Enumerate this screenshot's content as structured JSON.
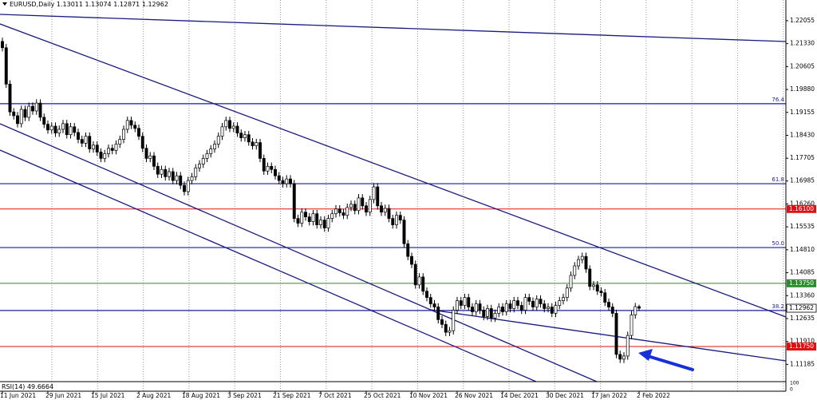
{
  "chart_data": {
    "type": "candlestick",
    "symbol": "EURUSD,Daily",
    "categories": [
      "11 Jun 2021",
      null,
      null,
      null,
      null,
      null,
      null,
      null,
      null,
      null,
      null,
      null,
      "29 Jun 2021",
      null,
      null,
      null,
      null,
      null,
      null,
      null,
      null,
      null,
      null,
      null,
      "15 Jul 2021",
      null,
      null,
      null,
      null,
      null,
      null,
      null,
      null,
      null,
      null,
      null,
      "2 Aug 2021",
      null,
      null,
      null,
      null,
      null,
      null,
      null,
      null,
      null,
      null,
      null,
      "18 Aug 2021",
      null,
      null,
      null,
      null,
      null,
      null,
      null,
      null,
      null,
      null,
      null,
      "3 Sep 2021",
      null,
      null,
      null,
      null,
      null,
      null,
      null,
      null,
      null,
      null,
      null,
      "21 Sep 2021",
      null,
      null,
      null,
      null,
      null,
      null,
      null,
      null,
      null,
      null,
      null,
      "7 Oct 2021",
      null,
      null,
      null,
      null,
      null,
      null,
      null,
      null,
      null,
      null,
      null,
      "25 Oct 2021",
      null,
      null,
      null,
      null,
      null,
      null,
      null,
      null,
      null,
      null,
      null,
      "10 Nov 2021",
      null,
      null,
      null,
      null,
      null,
      null,
      null,
      null,
      null,
      null,
      null,
      "26 Nov 2021",
      null,
      null,
      null,
      null,
      null,
      null,
      null,
      null,
      null,
      null,
      null,
      "14 Dec 2021",
      null,
      null,
      null,
      null,
      null,
      null,
      null,
      null,
      null,
      null,
      null,
      "30 Dec 2021",
      null,
      null,
      null,
      null,
      null,
      null,
      null,
      null,
      null,
      null,
      null,
      "17 Jan 2022",
      null,
      null,
      null,
      null,
      null,
      null,
      null,
      null,
      null,
      null,
      null,
      "2 Feb 2022"
    ],
    "open": [
      1.214,
      1.212,
      1.2005,
      1.1917,
      1.1905,
      1.188,
      1.1925,
      1.19,
      1.1935,
      1.192,
      1.1945,
      1.19,
      1.1878,
      1.186,
      1.1872,
      1.185,
      1.1862,
      1.188,
      1.1845,
      1.187,
      1.1852,
      1.183,
      1.1818,
      1.184,
      1.18,
      1.1812,
      1.179,
      1.177,
      1.1785,
      1.1802,
      1.1795,
      1.1815,
      1.183,
      1.1862,
      1.189,
      1.1875,
      1.1865,
      1.184,
      1.1802,
      1.177,
      1.1778,
      1.1745,
      1.172,
      1.1735,
      1.1712,
      1.1728,
      1.17,
      1.1715,
      1.1685,
      1.1665,
      1.17,
      1.1712,
      1.174,
      1.1752,
      1.177,
      1.1785,
      1.18,
      1.1815,
      1.184,
      1.187,
      1.189,
      1.1865,
      1.1872,
      1.185,
      1.1835,
      1.1845,
      1.1822,
      1.181,
      1.182,
      1.177,
      1.173,
      1.1745,
      1.1735,
      1.1715,
      1.17,
      1.169,
      1.1705,
      1.169,
      1.158,
      1.1565,
      1.16,
      1.1585,
      1.157,
      1.1595,
      1.156,
      1.1575,
      1.155,
      1.158,
      1.1595,
      1.161,
      1.1598,
      1.159,
      1.1615,
      1.1625,
      1.1605,
      1.1645,
      1.162,
      1.16,
      1.164,
      1.168,
      1.162,
      1.16,
      1.1612,
      1.158,
      1.156,
      1.159,
      1.1575,
      1.15,
      1.146,
      1.1435,
      1.137,
      1.1395,
      1.135,
      1.133,
      1.131,
      1.13,
      1.126,
      1.1245,
      1.122,
      1.1225,
      1.129,
      1.132,
      1.1305,
      1.133,
      1.13,
      1.1285,
      1.131,
      1.129,
      1.127,
      1.1295,
      1.1265,
      1.128,
      1.13,
      1.1285,
      1.131,
      1.1295,
      1.132,
      1.1305,
      1.129,
      1.133,
      1.1318,
      1.13,
      1.1325,
      1.131,
      1.1295,
      1.13,
      1.128,
      1.1305,
      1.132,
      1.133,
      1.136,
      1.14,
      1.143,
      1.145,
      1.146,
      1.142,
      1.1365,
      1.137,
      1.135,
      1.1345,
      1.1315,
      1.13,
      1.128,
      1.115,
      1.1135,
      1.1145,
      1.121,
      1.1275,
      1.13011
    ],
    "high": [
      1.2152,
      1.2132,
      1.2017,
      1.1929,
      1.1917,
      1.1937,
      1.1937,
      1.1947,
      1.1947,
      1.1957,
      1.1957,
      1.1912,
      1.189,
      1.1884,
      1.1884,
      1.1874,
      1.1892,
      1.1892,
      1.1882,
      1.1882,
      1.1864,
      1.1842,
      1.1852,
      1.1852,
      1.1824,
      1.1824,
      1.1802,
      1.1797,
      1.1814,
      1.1814,
      1.1827,
      1.1842,
      1.1874,
      1.1902,
      1.1902,
      1.1887,
      1.1877,
      1.1852,
      1.1814,
      1.179,
      1.179,
      1.1757,
      1.1747,
      1.1747,
      1.174,
      1.174,
      1.1727,
      1.1727,
      1.1697,
      1.1712,
      1.1724,
      1.1752,
      1.1764,
      1.1782,
      1.1797,
      1.1812,
      1.1827,
      1.1852,
      1.1882,
      1.1902,
      1.1902,
      1.1884,
      1.1884,
      1.1862,
      1.1857,
      1.1857,
      1.1834,
      1.1832,
      1.1832,
      1.1782,
      1.1757,
      1.1757,
      1.1747,
      1.1727,
      1.1712,
      1.1717,
      1.1717,
      1.1702,
      1.1592,
      1.1612,
      1.1612,
      1.1597,
      1.1607,
      1.1607,
      1.1587,
      1.1587,
      1.1592,
      1.1607,
      1.1622,
      1.1622,
      1.161,
      1.1627,
      1.1637,
      1.1637,
      1.1657,
      1.1657,
      1.1632,
      1.1652,
      1.1692,
      1.1692,
      1.1632,
      1.1624,
      1.1624,
      1.1592,
      1.1602,
      1.1602,
      1.1587,
      1.1512,
      1.1472,
      1.1447,
      1.1407,
      1.1407,
      1.1362,
      1.1342,
      1.1322,
      1.1312,
      1.1272,
      1.1257,
      1.1237,
      1.1302,
      1.1332,
      1.1332,
      1.1342,
      1.1342,
      1.1312,
      1.1322,
      1.1322,
      1.1302,
      1.1307,
      1.1307,
      1.1292,
      1.1312,
      1.1312,
      1.1322,
      1.1322,
      1.1332,
      1.1332,
      1.1317,
      1.1342,
      1.1342,
      1.133,
      1.1337,
      1.1337,
      1.1322,
      1.1312,
      1.1312,
      1.1317,
      1.1332,
      1.1342,
      1.1372,
      1.1412,
      1.1442,
      1.1462,
      1.1472,
      1.1472,
      1.1432,
      1.1382,
      1.1382,
      1.1362,
      1.1357,
      1.1327,
      1.1312,
      1.1292,
      1.1162,
      1.1157,
      1.1222,
      1.1287,
      1.1313,
      1.13074
    ],
    "low": [
      1.2108,
      1.1993,
      1.1905,
      1.1893,
      1.1868,
      1.1868,
      1.1888,
      1.1888,
      1.1908,
      1.1908,
      1.1888,
      1.1866,
      1.1848,
      1.1848,
      1.1838,
      1.1838,
      1.185,
      1.1833,
      1.1833,
      1.184,
      1.1818,
      1.1806,
      1.1806,
      1.1788,
      1.1788,
      1.1778,
      1.1758,
      1.1758,
      1.1773,
      1.1783,
      1.1783,
      1.1803,
      1.1818,
      1.185,
      1.1863,
      1.1853,
      1.1828,
      1.179,
      1.1758,
      1.1758,
      1.1733,
      1.1708,
      1.1708,
      1.17,
      1.17,
      1.1688,
      1.1688,
      1.1673,
      1.1653,
      1.1653,
      1.1688,
      1.17,
      1.1728,
      1.174,
      1.1758,
      1.1773,
      1.1788,
      1.1803,
      1.1828,
      1.1858,
      1.1853,
      1.1853,
      1.1838,
      1.1823,
      1.1823,
      1.181,
      1.1798,
      1.1798,
      1.1758,
      1.1718,
      1.1718,
      1.1723,
      1.1703,
      1.1688,
      1.1678,
      1.1678,
      1.1678,
      1.1568,
      1.1553,
      1.1553,
      1.1573,
      1.1558,
      1.1558,
      1.1548,
      1.1548,
      1.1538,
      1.1538,
      1.1568,
      1.1583,
      1.1586,
      1.1578,
      1.1578,
      1.1603,
      1.1593,
      1.1593,
      1.1608,
      1.1588,
      1.1588,
      1.1628,
      1.1608,
      1.1588,
      1.1588,
      1.1568,
      1.1548,
      1.1548,
      1.1563,
      1.1488,
      1.1448,
      1.1423,
      1.1358,
      1.1358,
      1.1338,
      1.1318,
      1.1298,
      1.1288,
      1.1248,
      1.1233,
      1.1208,
      1.1208,
      1.1213,
      1.1278,
      1.1293,
      1.1293,
      1.1288,
      1.1273,
      1.1273,
      1.1278,
      1.1258,
      1.1258,
      1.1253,
      1.1253,
      1.1268,
      1.1273,
      1.1273,
      1.1283,
      1.1283,
      1.1293,
      1.1278,
      1.1278,
      1.1306,
      1.1288,
      1.1288,
      1.1298,
      1.1283,
      1.1283,
      1.1268,
      1.1268,
      1.1293,
      1.1308,
      1.1318,
      1.1348,
      1.1388,
      1.1418,
      1.1438,
      1.1408,
      1.1353,
      1.1353,
      1.1338,
      1.1333,
      1.1303,
      1.1288,
      1.1268,
      1.1138,
      1.1123,
      1.1123,
      1.1133,
      1.1198,
      1.1263,
      1.12871
    ],
    "close": [
      1.212,
      1.2005,
      1.1917,
      1.1905,
      1.188,
      1.1925,
      1.19,
      1.1935,
      1.192,
      1.1945,
      1.19,
      1.1878,
      1.186,
      1.1872,
      1.185,
      1.1862,
      1.188,
      1.1845,
      1.187,
      1.1852,
      1.183,
      1.1818,
      1.184,
      1.18,
      1.1812,
      1.179,
      1.177,
      1.1785,
      1.1802,
      1.1795,
      1.1815,
      1.183,
      1.1862,
      1.189,
      1.1875,
      1.1865,
      1.184,
      1.1802,
      1.177,
      1.1778,
      1.1745,
      1.172,
      1.1735,
      1.1712,
      1.1728,
      1.17,
      1.1715,
      1.1685,
      1.1665,
      1.17,
      1.1712,
      1.174,
      1.1752,
      1.177,
      1.1785,
      1.18,
      1.1815,
      1.184,
      1.187,
      1.189,
      1.1865,
      1.1872,
      1.185,
      1.1835,
      1.1845,
      1.1822,
      1.181,
      1.182,
      1.177,
      1.173,
      1.1745,
      1.1735,
      1.1715,
      1.17,
      1.169,
      1.1705,
      1.169,
      1.158,
      1.1565,
      1.16,
      1.1585,
      1.157,
      1.1595,
      1.156,
      1.1575,
      1.155,
      1.158,
      1.1595,
      1.161,
      1.1598,
      1.159,
      1.1615,
      1.1625,
      1.1605,
      1.1645,
      1.162,
      1.16,
      1.164,
      1.168,
      1.162,
      1.16,
      1.1612,
      1.158,
      1.156,
      1.159,
      1.1575,
      1.15,
      1.146,
      1.1435,
      1.137,
      1.1395,
      1.135,
      1.133,
      1.131,
      1.13,
      1.126,
      1.1245,
      1.122,
      1.1225,
      1.129,
      1.132,
      1.1305,
      1.133,
      1.13,
      1.1285,
      1.131,
      1.129,
      1.127,
      1.1295,
      1.1265,
      1.128,
      1.13,
      1.1285,
      1.131,
      1.1295,
      1.132,
      1.1305,
      1.129,
      1.133,
      1.1318,
      1.13,
      1.1325,
      1.131,
      1.1295,
      1.13,
      1.128,
      1.1305,
      1.132,
      1.133,
      1.136,
      1.14,
      1.143,
      1.145,
      1.146,
      1.142,
      1.1365,
      1.137,
      1.135,
      1.1345,
      1.1315,
      1.13,
      1.128,
      1.115,
      1.1135,
      1.1145,
      1.121,
      1.1275,
      1.13011,
      1.12962
    ],
    "ylim": [
      1.1069,
      1.2271
    ],
    "yticks": [
      1.22055,
      {
        "value": 1.2133,
        "label": "1.21330"
      },
      1.20605,
      {
        "value": 1.1988,
        "label": "1.19880"
      },
      1.19155,
      {
        "value": 1.1843,
        "label": "1.18430"
      },
      1.17705,
      1.16985,
      {
        "value": 1.1626,
        "label": "1.16260"
      },
      1.15535,
      {
        "value": 1.1481,
        "label": "1.14810"
      },
      1.14085,
      {
        "value": 1.1336,
        "label": "1.13360"
      },
      1.12635,
      {
        "value": 1.1191,
        "label": "1.11910"
      },
      1.11185
    ],
    "fibo_levels": [
      {
        "value": 1.1943,
        "label": "76.4",
        "color": "#1c1c9c"
      },
      {
        "value": 1.169,
        "label": "61.8",
        "color": "#1c1c9c"
      },
      {
        "value": 1.1488,
        "label": "50.0",
        "color": "#1c1c9c"
      },
      {
        "value": 1.1289,
        "label": "38.2",
        "color": "#1c1c9c"
      }
    ],
    "price_levels": [
      {
        "value": 1.161,
        "label": "1.16100",
        "color": "#e01010"
      },
      {
        "value": 1.1375,
        "label": "1.13750",
        "color": "#2e8b2e"
      },
      {
        "value": 1.1175,
        "label": "1.11750",
        "color": "#e01010"
      }
    ],
    "indicator": "RSI(14)",
    "indicator_value": 49.6664,
    "indicator_ylim": [
      0,
      100
    ],
    "indicator_yticks": [
      100,
      0
    ]
  }
}
